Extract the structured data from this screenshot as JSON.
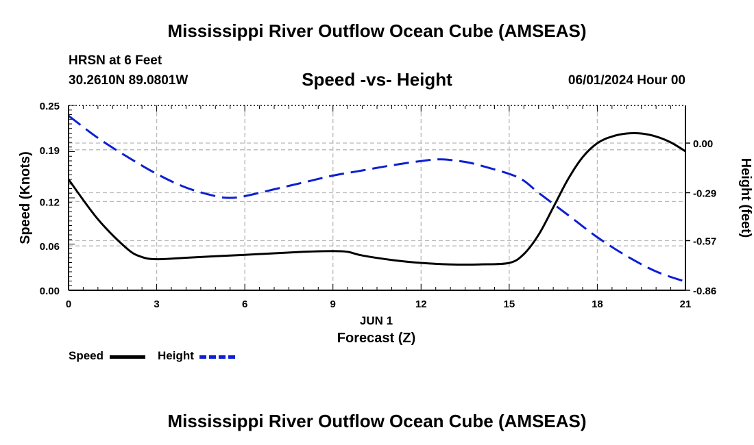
{
  "page": {
    "title": "Mississippi River Outflow Ocean Cube (AMSEAS)",
    "title_repeat": "Mississippi River Outflow Ocean Cube (AMSEAS)",
    "station": "HRSN at 6 Feet",
    "coords": "30.2610N  89.0801W",
    "datetime": "06/01/2024 Hour 00"
  },
  "legend": [
    {
      "label": "Speed",
      "color": "#000000"
    },
    {
      "label": "Height",
      "color": "#0d1fd2"
    }
  ],
  "chart_data": {
    "type": "line",
    "title": "Speed -vs- Height",
    "xlabel": "Forecast (Z)",
    "x_date_label": "JUN 1",
    "ylabel": "Speed (Knots)",
    "y2label": "Height (feet)",
    "xlim": [
      0,
      21
    ],
    "ylim": [
      0,
      0.25
    ],
    "y2lim": [
      -0.86,
      0.22
    ],
    "x_ticks": [
      0,
      3,
      6,
      9,
      12,
      15,
      18,
      21
    ],
    "x_tick_labels": [
      "0",
      "3",
      "6",
      "9",
      "12",
      "15",
      "18",
      "21"
    ],
    "y_ticks": [
      0,
      0.06,
      0.12,
      0.19,
      0.25
    ],
    "y_tick_labels": [
      "0.00",
      "0.06",
      "0.12",
      "0.19",
      "0.25"
    ],
    "y2_ticks": [
      0.0,
      -0.29,
      -0.57,
      -0.86
    ],
    "y2_tick_labels": [
      "0.00",
      "-0.29",
      "-0.57",
      "-0.86"
    ],
    "grid": true,
    "series": [
      {
        "name": "Speed",
        "axis": "left",
        "color": "#000000",
        "dash": "solid",
        "x": [
          0,
          1,
          2,
          2.5,
          3,
          4,
          5,
          6,
          7,
          8,
          9,
          9.5,
          10,
          11,
          12,
          13,
          14,
          15,
          15.5,
          16,
          16.5,
          17,
          17.5,
          18,
          18.5,
          19,
          19.5,
          20,
          20.5,
          21
        ],
        "values": [
          0.15,
          0.096,
          0.056,
          0.045,
          0.042,
          0.044,
          0.046,
          0.048,
          0.05,
          0.052,
          0.053,
          0.052,
          0.047,
          0.041,
          0.037,
          0.035,
          0.035,
          0.037,
          0.049,
          0.075,
          0.112,
          0.15,
          0.18,
          0.199,
          0.208,
          0.212,
          0.212,
          0.208,
          0.2,
          0.188
        ]
      },
      {
        "name": "Height",
        "axis": "right",
        "color": "#0d1fd2",
        "dash": "dashed",
        "x": [
          0,
          1,
          2,
          3,
          4,
          5,
          5.5,
          6,
          7,
          8,
          9,
          10,
          11,
          12,
          12.7,
          13.5,
          14,
          15,
          15.5,
          16,
          17,
          18,
          19,
          20,
          21
        ],
        "values": [
          0.16,
          0.03,
          -0.08,
          -0.18,
          -0.26,
          -0.31,
          -0.32,
          -0.31,
          -0.27,
          -0.23,
          -0.19,
          -0.16,
          -0.13,
          -0.105,
          -0.095,
          -0.11,
          -0.13,
          -0.18,
          -0.22,
          -0.29,
          -0.42,
          -0.55,
          -0.66,
          -0.75,
          -0.81
        ]
      }
    ]
  }
}
